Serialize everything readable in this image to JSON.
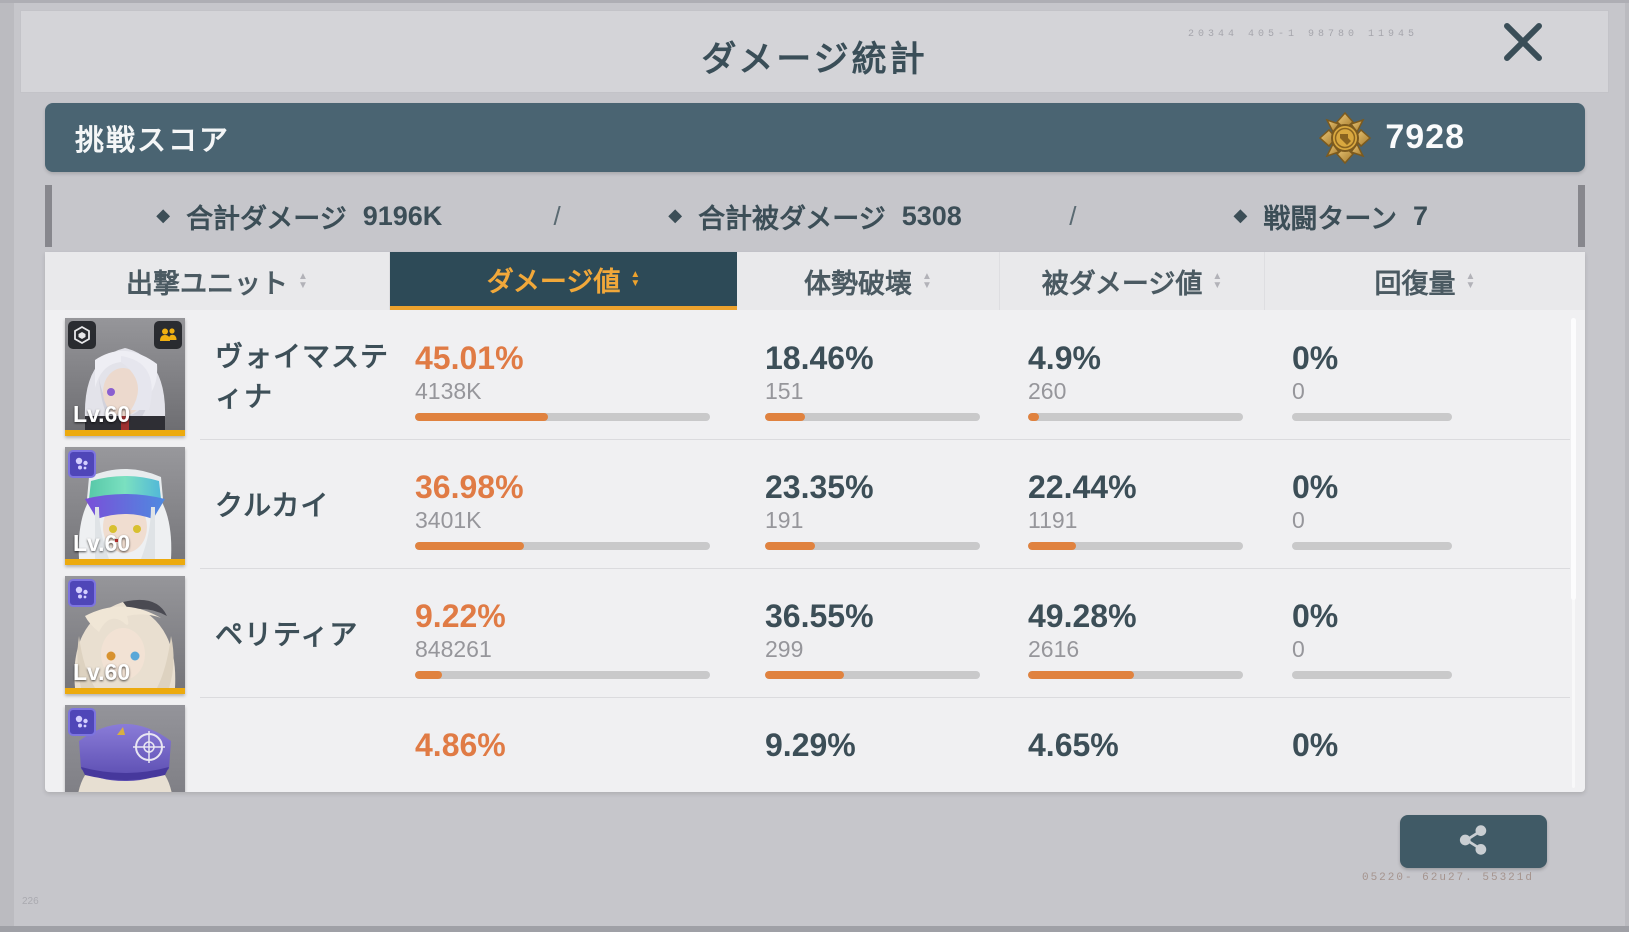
{
  "window": {
    "title": "ダメージ統計"
  },
  "icons": {
    "diamond": "◆",
    "sort_up": "▲",
    "sort_down": "▼"
  },
  "colors": {
    "accent_orange": "#e07b45",
    "bar_fill": "#e0823f",
    "tab_active_bg": "#2d4a57",
    "tab_active_text": "#f1a83a",
    "score_bar_bg": "#4a6472",
    "dark_text": "#3c4e57",
    "portrait_border_gold": "#ecaa0e"
  },
  "decor": {
    "top_right": "20344  405-1  98780  11945",
    "bottom_right": "05220-  62u27.  55321d",
    "bottom_left": "226"
  },
  "score": {
    "label": "挑戦スコア",
    "value": "7928"
  },
  "summary": {
    "separator": "/",
    "items": [
      {
        "label": "合計ダメージ",
        "value": "9196K"
      },
      {
        "label": "合計被ダメージ",
        "value": "5308"
      },
      {
        "label": "戦闘ターン",
        "value": "7"
      }
    ]
  },
  "table": {
    "tabs": [
      {
        "label": "出撃ユニット"
      },
      {
        "label": "ダメージ値"
      },
      {
        "label": "体勢破壊"
      },
      {
        "label": "被ダメージ値"
      },
      {
        "label": "回復量"
      }
    ],
    "rows": [
      {
        "name": "ヴォイマスティナ",
        "level": "Lv.60",
        "damage": {
          "percent": "45.01%",
          "value": "4138K",
          "bar": 45.01
        },
        "poise": {
          "percent": "18.46%",
          "value": "151",
          "bar": 18.46
        },
        "taken": {
          "percent": "4.9%",
          "value": "260",
          "bar": 4.9
        },
        "heal": {
          "percent": "0%",
          "value": "0",
          "bar": 0
        }
      },
      {
        "name": "クルカイ",
        "level": "Lv.60",
        "damage": {
          "percent": "36.98%",
          "value": "3401K",
          "bar": 36.98
        },
        "poise": {
          "percent": "23.35%",
          "value": "191",
          "bar": 23.35
        },
        "taken": {
          "percent": "22.44%",
          "value": "1191",
          "bar": 22.44
        },
        "heal": {
          "percent": "0%",
          "value": "0",
          "bar": 0
        }
      },
      {
        "name": "ペリティア",
        "level": "Lv.60",
        "damage": {
          "percent": "9.22%",
          "value": "848261",
          "bar": 9.22
        },
        "poise": {
          "percent": "36.55%",
          "value": "299",
          "bar": 36.55
        },
        "taken": {
          "percent": "49.28%",
          "value": "2616",
          "bar": 49.28
        },
        "heal": {
          "percent": "0%",
          "value": "0",
          "bar": 0
        }
      },
      {
        "damage": {
          "percent": "4.86%"
        },
        "poise": {
          "percent": "9.29%"
        },
        "taken": {
          "percent": "4.65%"
        },
        "heal": {
          "percent": "0%"
        }
      }
    ]
  }
}
